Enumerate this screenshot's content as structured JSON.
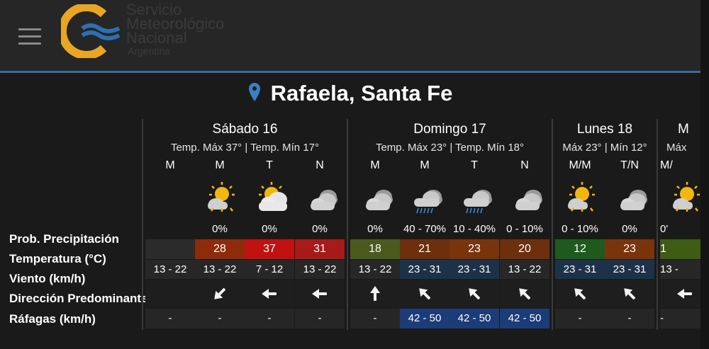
{
  "header": {
    "logo_line1": "Servicio",
    "logo_line2": "Meteorológico",
    "logo_line3": "Nacional",
    "logo_line4": "Argentina"
  },
  "location": "Rafaela, Santa Fe",
  "row_labels": {
    "prob": "Prob. Precipitación",
    "temp": "Temperatura (°C)",
    "wind": "Viento (km/h)",
    "dir": "Dirección Predominante",
    "gust": "Ráfagas (km/h)"
  },
  "days": [
    {
      "name": "Sábado 16",
      "sub": "Temp. Máx 37° | Temp. Mín 17°"
    },
    {
      "name": "Domingo 17",
      "sub": "Temp. Máx 23° | Temp. Mín 18°"
    },
    {
      "name": "Lunes 18",
      "sub": "Máx 23° | Mín 12°"
    },
    {
      "name": "M",
      "sub": "Máx"
    }
  ],
  "periods": [
    {
      "label": "M",
      "icon": "empty",
      "prob": "",
      "temp": "",
      "wind": "13 - 22",
      "dir": "none",
      "gust": "-"
    },
    {
      "label": "M",
      "icon": "sun-cloud-icon",
      "prob": "0%",
      "temp": "28",
      "wind": "13 - 22",
      "dir": "arrow-down-left-icon",
      "gust": "-"
    },
    {
      "label": "T",
      "icon": "sun-behind-cloud-icon",
      "prob": "0%",
      "temp": "37",
      "wind": "7 - 12",
      "dir": "arrow-left-icon",
      "gust": "-"
    },
    {
      "label": "N",
      "icon": "cloudy-night-icon",
      "prob": "0%",
      "temp": "31",
      "wind": "13 - 22",
      "dir": "arrow-left-icon",
      "gust": "-"
    },
    {
      "label": "M",
      "icon": "cloudy-icon",
      "prob": "0%",
      "temp": "18",
      "wind": "13 - 22",
      "dir": "arrow-up-icon",
      "gust": "-"
    },
    {
      "label": "M",
      "icon": "cloud-rain-icon",
      "prob": "40 - 70%",
      "temp": "21",
      "wind": "23 - 31",
      "dir": "arrow-up-left-icon",
      "gust": "42 - 50"
    },
    {
      "label": "T",
      "icon": "cloud-rain-icon",
      "prob": "10 - 40%",
      "temp": "23",
      "wind": "23 - 31",
      "dir": "arrow-up-left-icon",
      "gust": "42 - 50"
    },
    {
      "label": "N",
      "icon": "cloudy-icon",
      "prob": "0 - 10%",
      "temp": "20",
      "wind": "13 - 22",
      "dir": "arrow-up-left-icon",
      "gust": "42 - 50"
    },
    {
      "label": "M/M",
      "icon": "sun-cloud-icon",
      "prob": "0 - 10%",
      "temp": "12",
      "wind": "23 - 31",
      "dir": "arrow-up-left-icon",
      "gust": "-"
    },
    {
      "label": "T/N",
      "icon": "cloudy-night-icon",
      "prob": "0%",
      "temp": "23",
      "wind": "23 - 31",
      "dir": "arrow-up-left-icon",
      "gust": "-"
    },
    {
      "label": "M/",
      "icon": "sun-cloud-icon",
      "prob": "0'",
      "temp": "1",
      "wind": "13 -",
      "dir": "arrow-left-icon",
      "gust": "-"
    }
  ],
  "colors": {
    "temp_12": "#1e5a1e",
    "temp_18": "#4a5a1c",
    "temp_20": "#6e2f0c",
    "temp_21": "#6e2f0c",
    "temp_23": "#7a340c",
    "temp_28": "#8e2b0a",
    "temp_31": "#a81919",
    "temp_37": "#c11111",
    "temp_partial": "#3e5c14",
    "wind_strong": "#1d3249",
    "wind_light": "#272727",
    "gust_bg": "#1c3c78",
    "accent_line": "#3b6c9a"
  }
}
